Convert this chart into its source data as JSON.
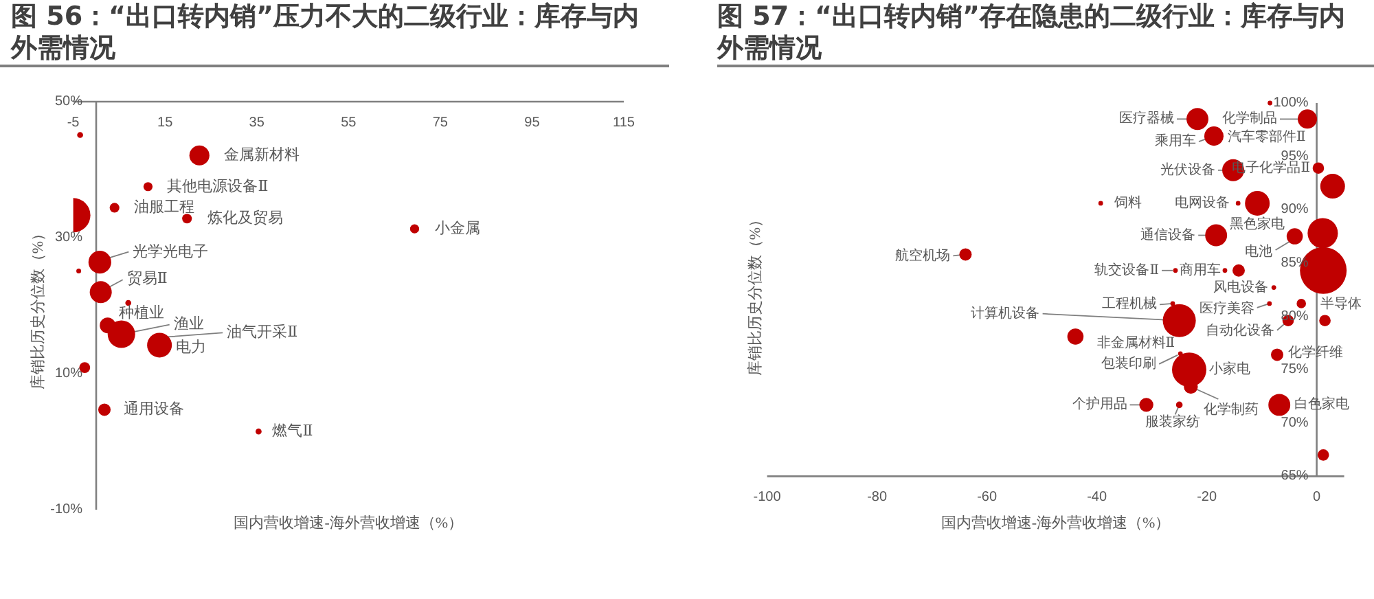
{
  "chart_data": [
    {
      "type": "bubble",
      "title": "图 56：“出口转内销”压力不大的二级行业：库存与内外需情况",
      "xlabel": "国内营收增速-海外营收增速（%）",
      "ylabel": "库销比历史分位数（%）",
      "color": "#c00000",
      "x": [
        -3.5,
        22.5,
        11.3,
        4.0,
        19.8,
        -5,
        0.8,
        -3.8,
        1.0,
        7.0,
        2.5,
        5.5,
        13.8,
        -2.5,
        1.8,
        35.4,
        69.4
      ],
      "values": [
        45.1,
        42.1,
        37.5,
        34.4,
        32.8,
        33.3,
        26.4,
        25.1,
        22.0,
        20.4,
        17.1,
        15.8,
        14.2,
        10.9,
        4.7,
        1.5,
        31.3
      ],
      "sizes": [
        0.03,
        0.34,
        0.07,
        0.08,
        0.08,
        1,
        0.44,
        0.02,
        0.41,
        0.03,
        0.21,
        0.64,
        0.52,
        0.1,
        0.13,
        0.03,
        0.07
      ],
      "value_labels": [
        null,
        "金属新材料",
        "其他电源设备Ⅱ",
        "油服工程",
        "炼化及贸易",
        null,
        "光学光电子",
        null,
        "贸易Ⅱ",
        null,
        "种植业",
        "渔业",
        "电力",
        null,
        "通用设备",
        "燃气Ⅱ",
        "小金属"
      ],
      "annotations": [
        {
          "text": "油气开采Ⅱ",
          "x": 13.8,
          "y": 14.2
        }
      ],
      "xlim": [
        -5,
        115
      ],
      "xticks": [
        -5,
        15,
        35,
        55,
        75,
        95,
        115
      ],
      "ylim": [
        -10,
        50
      ],
      "yticks": [
        {
          "value": -10,
          "label": "-10%"
        },
        {
          "value": 10,
          "label": "10%"
        },
        {
          "value": 30,
          "label": "30%"
        },
        {
          "value": 50,
          "label": "50%"
        }
      ]
    },
    {
      "type": "bubble",
      "title": "图 57：“出口转内销”存在隐患的二级行业：库存与内外需情况",
      "xlabel": "国内营收增速-海外营收增速（%）",
      "ylabel": "库销比历史分位数（%）",
      "color": "#c00000",
      "x": [
        -8.5,
        -21.7,
        -1.7,
        -18.7,
        -15.2,
        0.3,
        2.9,
        -39.3,
        -14.3,
        -10.8,
        -18.3,
        -4.0,
        1.1,
        1.2,
        -63.9,
        -25.7,
        -16.7,
        -14.2,
        -7.8,
        -8.6,
        -2.8,
        -5.2,
        1.5,
        -26.2,
        -25,
        -43.9,
        -7.2,
        -24.8,
        -23.2,
        -22.9,
        -6.8,
        -31,
        -25,
        1.2
      ],
      "values": [
        100,
        98.5,
        98.5,
        96.9,
        93.7,
        93.9,
        92.2,
        90.6,
        90.6,
        90.6,
        87.6,
        87.5,
        87.8,
        84.3,
        85.8,
        84.3,
        84.3,
        84.3,
        82.7,
        81.2,
        81.2,
        79.6,
        79.6,
        81.2,
        79.6,
        78.1,
        76.4,
        76.5,
        75.0,
        73.4,
        71.7,
        71.7,
        71.7,
        67.0
      ],
      "sizes": [
        0.01,
        0.22,
        0.17,
        0.17,
        0.22,
        0.06,
        0.28,
        0.01,
        0.01,
        0.28,
        0.22,
        0.12,
        0.42,
        1,
        0.07,
        0.01,
        0.01,
        0.07,
        0.01,
        0.01,
        0.04,
        0.06,
        0.06,
        0.01,
        0.5,
        0.12,
        0.07,
        0.01,
        0.54,
        0.09,
        0.22,
        0.09,
        0.02,
        0.06
      ],
      "value_labels": [
        null,
        "医疗器械",
        "化学制品",
        "乘用车",
        "光伏设备",
        "电子化学品Ⅱ",
        null,
        "饲料",
        "电网设备",
        "黑色家电",
        "通信设备",
        "电池",
        null,
        "半导体",
        "航空机场",
        "轨交设备Ⅱ",
        "商用车",
        null,
        "风电设备",
        "医疗美容",
        null,
        "自动化设备",
        null,
        "工程机械",
        "计算机设备",
        "非金属材料Ⅱ",
        "化学纤维",
        "包装印刷",
        "小家电",
        "化学制药",
        "白色家电",
        "个护用品",
        "服装家纺",
        null
      ],
      "annotations": [
        {
          "text": "汽车零部件Ⅱ",
          "x": -18.7,
          "y": 96.9
        }
      ],
      "xlim": [
        -100,
        5
      ],
      "xticks": [
        -100,
        -80,
        -60,
        -40,
        -20,
        0
      ],
      "ylim": [
        65,
        100
      ],
      "yticks": [
        {
          "value": 65,
          "label": "65%"
        },
        {
          "value": 70,
          "label": "70%"
        },
        {
          "value": 75,
          "label": "75%"
        },
        {
          "value": 80,
          "label": "80%"
        },
        {
          "value": 85,
          "label": "85%"
        },
        {
          "value": 90,
          "label": "90%"
        },
        {
          "value": 95,
          "label": "95%"
        },
        {
          "value": 100,
          "label": "100%"
        }
      ]
    }
  ]
}
